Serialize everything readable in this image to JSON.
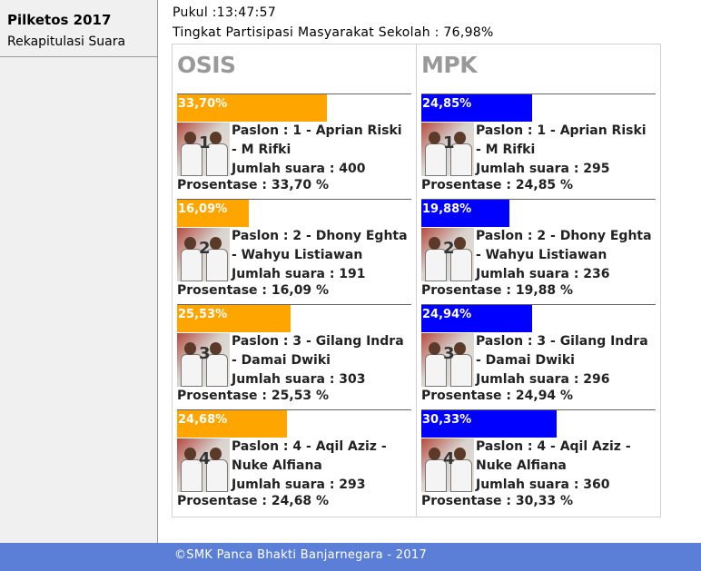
{
  "sidebar": {
    "title": "Pilketos 2017",
    "subtitle": "Rekapitulasi Suara"
  },
  "header": {
    "clock": "Pukul :13:47:57",
    "participation": "Tingkat Partisipasi Masyarakat Sekolah : 76,98%"
  },
  "colors": {
    "osis_bar": "#ffa500",
    "mpk_bar": "#0000ff",
    "footer": "#5b7fd6"
  },
  "osis": {
    "title": "OSIS",
    "candidates": [
      {
        "percent_label": "33,70%",
        "percent": 33.7,
        "paslon": "Paslon : 1 - Aprian Riski - M Rifki",
        "votes": "Jumlah suara : 400",
        "prosentase": "Prosentase : 33,70 %",
        "photo_number": "1"
      },
      {
        "percent_label": "16,09%",
        "percent": 16.09,
        "paslon": "Paslon : 2 - Dhony Eghta - Wahyu Listiawan",
        "votes": "Jumlah suara : 191",
        "prosentase": "Prosentase : 16,09 %",
        "photo_number": "2"
      },
      {
        "percent_label": "25,53%",
        "percent": 25.53,
        "paslon": "Paslon : 3 - Gilang Indra - Damai Dwiki",
        "votes": "Jumlah suara : 303",
        "prosentase": "Prosentase : 25,53 %",
        "photo_number": "3"
      },
      {
        "percent_label": "24,68%",
        "percent": 24.68,
        "paslon": "Paslon : 4 - Aqil Aziz - Nuke Alfiana",
        "votes": "Jumlah suara : 293",
        "prosentase": "Prosentase : 24,68 %",
        "photo_number": "4"
      }
    ]
  },
  "mpk": {
    "title": "MPK",
    "candidates": [
      {
        "percent_label": "24,85%",
        "percent": 24.85,
        "paslon": "Paslon : 1 - Aprian Riski - M Rifki",
        "votes": "Jumlah suara : 295",
        "prosentase": "Prosentase : 24,85 %",
        "photo_number": "1"
      },
      {
        "percent_label": "19,88%",
        "percent": 19.88,
        "paslon": "Paslon : 2 - Dhony Eghta - Wahyu Listiawan",
        "votes": "Jumlah suara : 236",
        "prosentase": "Prosentase : 19,88 %",
        "photo_number": "2"
      },
      {
        "percent_label": "24,94%",
        "percent": 24.94,
        "paslon": "Paslon : 3 - Gilang Indra - Damai Dwiki",
        "votes": "Jumlah suara : 296",
        "prosentase": "Prosentase : 24,94 %",
        "photo_number": "3"
      },
      {
        "percent_label": "30,33%",
        "percent": 30.33,
        "paslon": "Paslon : 4 - Aqil Aziz - Nuke Alfiana",
        "votes": "Jumlah suara : 360",
        "prosentase": "Prosentase : 30,33 %",
        "photo_number": "4"
      }
    ]
  },
  "footer": {
    "text": "©SMK Panca Bhakti Banjarnegara - 2017"
  }
}
